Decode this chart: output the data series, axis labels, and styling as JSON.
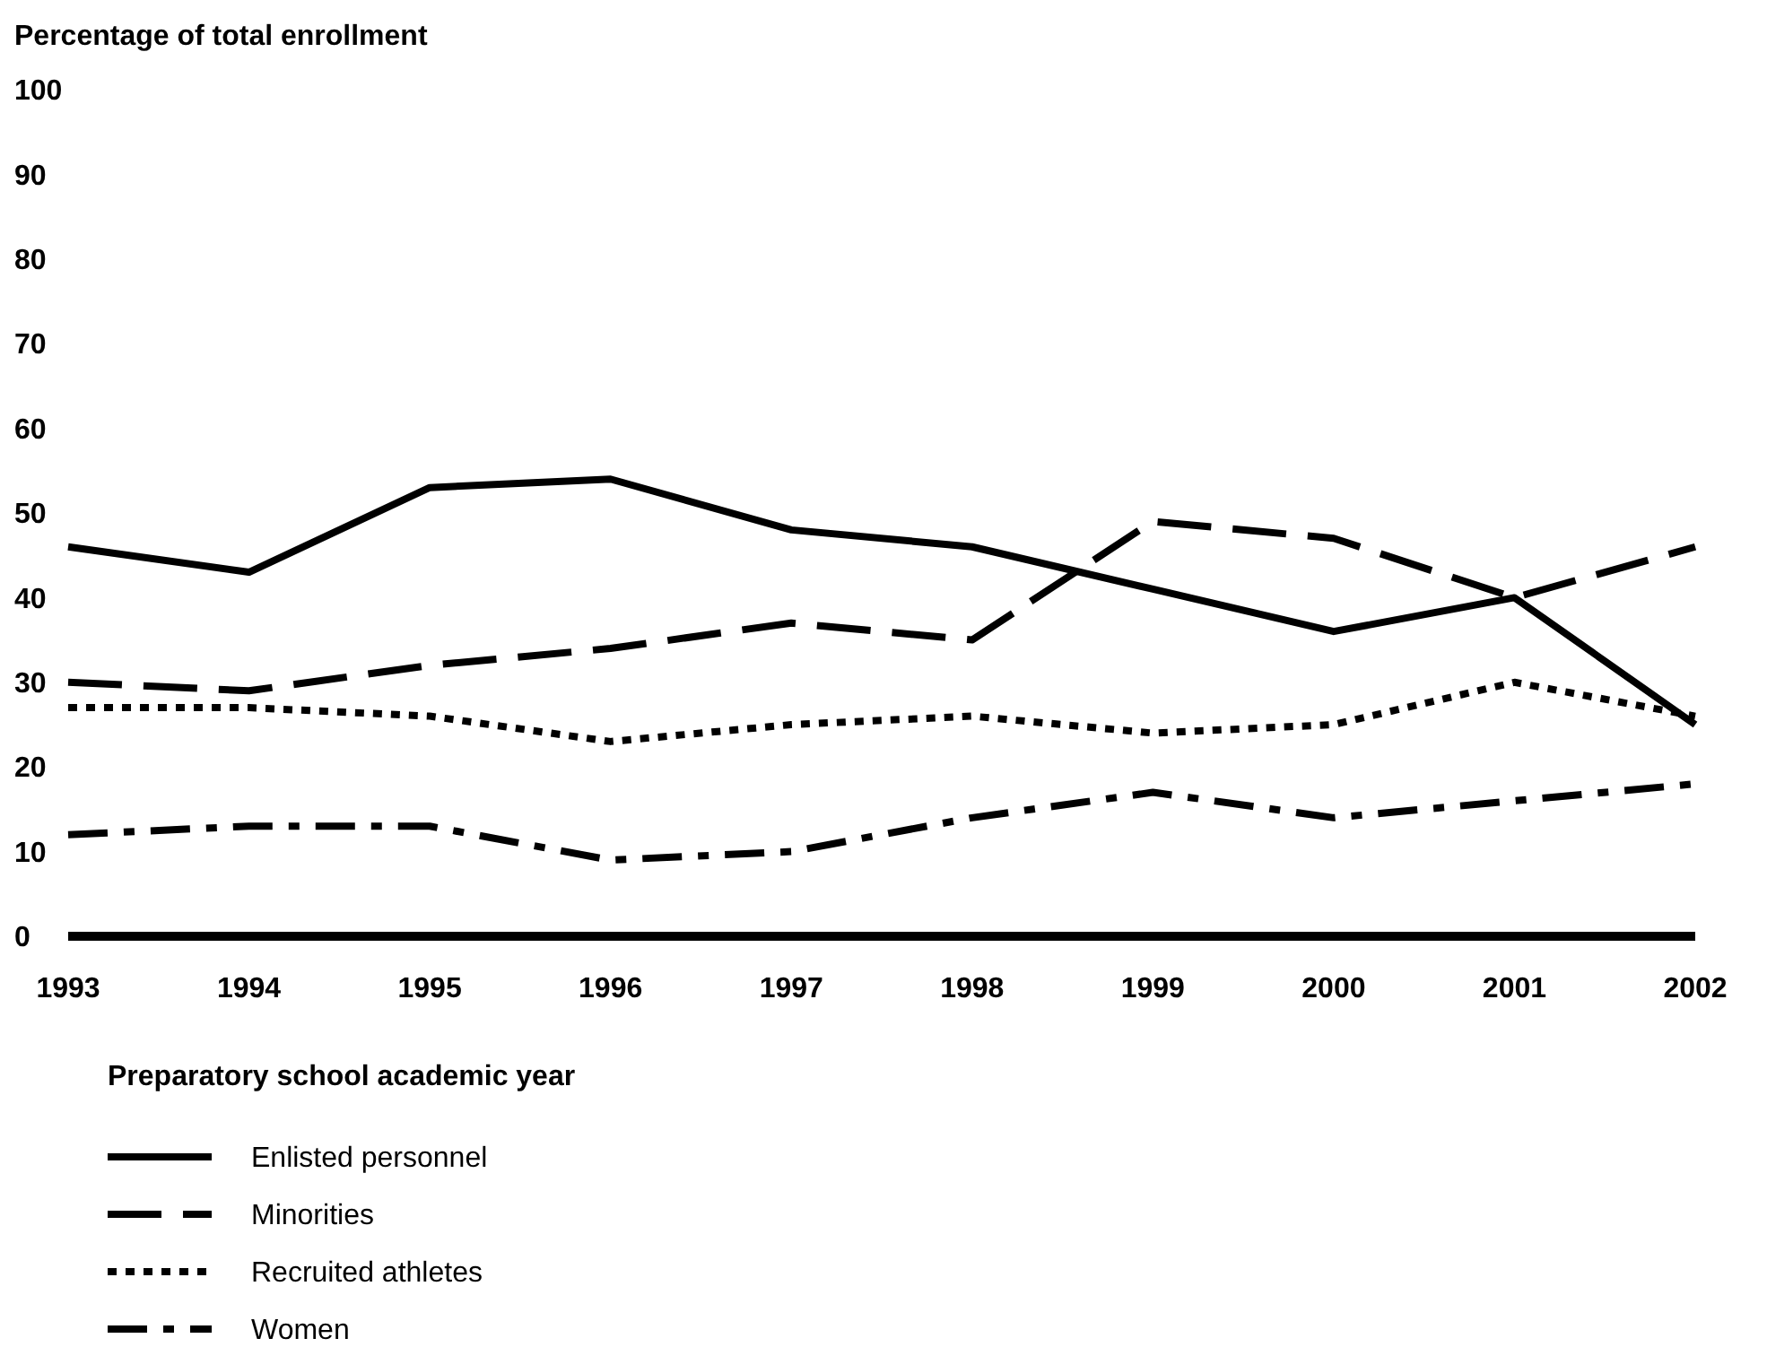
{
  "chart_data": {
    "type": "line",
    "ylabel": "Percentage of total enrollment",
    "xlabel": "Preparatory school academic year",
    "categories": [
      "1993",
      "1994",
      "1995",
      "1996",
      "1997",
      "1998",
      "1999",
      "2000",
      "2001",
      "2002"
    ],
    "ylim": [
      0,
      100
    ],
    "yticks": [
      0,
      10,
      20,
      30,
      40,
      50,
      60,
      70,
      80,
      90,
      100
    ],
    "grid": false,
    "legend": "bottom left",
    "marker": "none",
    "series": [
      {
        "name": "Enlisted personnel",
        "color": "#000000",
        "line_style": "solid",
        "values": [
          46,
          43,
          53,
          54,
          48,
          46,
          41,
          36,
          40,
          25
        ]
      },
      {
        "name": "Minorities",
        "color": "#000000",
        "line_style": "dashed",
        "values": [
          30,
          29,
          32,
          34,
          37,
          35,
          49,
          47,
          40,
          46
        ]
      },
      {
        "name": "Recruited athletes",
        "color": "#000000",
        "line_style": "dotted",
        "values": [
          27,
          27,
          26,
          23,
          25,
          26,
          24,
          25,
          30,
          26
        ]
      },
      {
        "name": "Women",
        "color": "#000000",
        "line_style": "dashdot",
        "values": [
          12,
          13,
          13,
          9,
          10,
          14,
          17,
          14,
          16,
          18
        ]
      }
    ]
  }
}
